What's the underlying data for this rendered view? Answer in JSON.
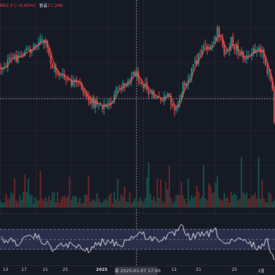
{
  "header": {
    "price_change": "862.3 (−0.85%)",
    "volume_label": "볼륨",
    "volume_value": "27.24K"
  },
  "x_axis": {
    "ticks": [
      "13",
      "17",
      "21",
      "25",
      "2025",
      "13",
      "21",
      "25",
      "2월"
    ],
    "cursor_label": "화 2025-01-07   17:00"
  },
  "colors": {
    "background": "#161a25",
    "up": "#26a69a",
    "down": "#ef5350",
    "ma_line": "#ff5252",
    "rsi_line": "#ffffff",
    "rsi_band": "#2a2e4a",
    "grid": "#232632",
    "crosshair": "#9598a1",
    "vol_up": "#1c5a50",
    "vol_down": "#7a2a2a"
  },
  "chart_data": {
    "type": "candlestick",
    "candle_count": 160,
    "anchors": [
      [
        0,
        0.4
      ],
      [
        8,
        0.32
      ],
      [
        18,
        0.24
      ],
      [
        22,
        0.17
      ],
      [
        26,
        0.2
      ],
      [
        30,
        0.4
      ],
      [
        34,
        0.46
      ],
      [
        40,
        0.53
      ],
      [
        46,
        0.55
      ],
      [
        52,
        0.7
      ],
      [
        56,
        0.7
      ],
      [
        62,
        0.74
      ],
      [
        68,
        0.6
      ],
      [
        74,
        0.5
      ],
      [
        78,
        0.44
      ],
      [
        82,
        0.52
      ],
      [
        86,
        0.62
      ],
      [
        92,
        0.68
      ],
      [
        98,
        0.66
      ],
      [
        102,
        0.76
      ],
      [
        106,
        0.56
      ],
      [
        110,
        0.45
      ],
      [
        114,
        0.34
      ],
      [
        118,
        0.2
      ],
      [
        122,
        0.26
      ],
      [
        126,
        0.09
      ],
      [
        130,
        0.28
      ],
      [
        134,
        0.17
      ],
      [
        138,
        0.26
      ],
      [
        142,
        0.33
      ],
      [
        146,
        0.28
      ],
      [
        150,
        0.2
      ],
      [
        154,
        0.35
      ],
      [
        158,
        0.6
      ],
      [
        159,
        0.9
      ]
    ],
    "rsi_anchors": [
      [
        0,
        0.5
      ],
      [
        10,
        0.58
      ],
      [
        20,
        0.42
      ],
      [
        30,
        0.72
      ],
      [
        40,
        0.62
      ],
      [
        50,
        0.78
      ],
      [
        60,
        0.55
      ],
      [
        70,
        0.62
      ],
      [
        80,
        0.35
      ],
      [
        90,
        0.52
      ],
      [
        100,
        0.4
      ],
      [
        105,
        0.22
      ],
      [
        110,
        0.45
      ],
      [
        120,
        0.38
      ],
      [
        125,
        0.3
      ],
      [
        130,
        0.62
      ],
      [
        140,
        0.52
      ],
      [
        150,
        0.7
      ],
      [
        155,
        0.56
      ],
      [
        159,
        0.95
      ]
    ],
    "volume_spikes": [
      14,
      23,
      40,
      51,
      86,
      98,
      118,
      126,
      140,
      150
    ]
  }
}
